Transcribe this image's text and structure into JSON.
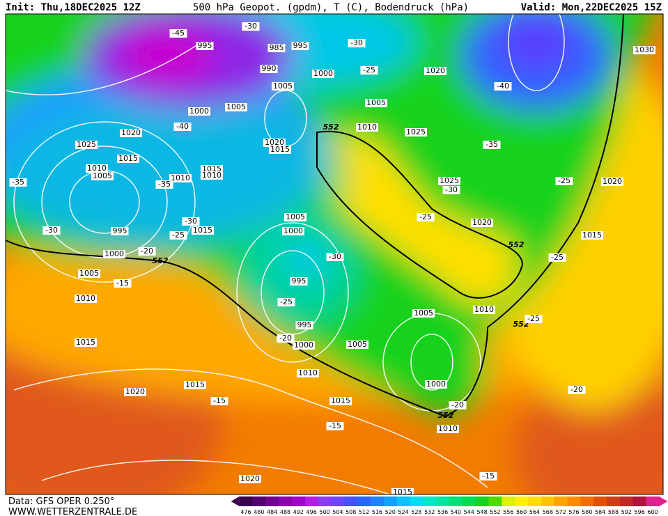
{
  "header": {
    "init": "Init: Thu,18DEC2025 12Z",
    "title": "500 hPa Geopot. (gpdm), T (C), Bodendruck (hPa)",
    "valid": "Valid: Mon,22DEC2025 15Z"
  },
  "map": {
    "labels": [
      -45,
      -30,
      995,
      985,
      995,
      -30,
      990,
      1000,
      -25,
      1020,
      1030,
      1005,
      -40,
      1005,
      1005,
      1000,
      552,
      1010,
      1025,
      -40,
      1020,
      1020,
      1015,
      -35,
      1025,
      1015,
      1010,
      1005,
      1015,
      1010,
      1010,
      1025,
      -30,
      -25,
      1020,
      -35,
      -35,
      -30,
      -25,
      1005,
      1020,
      995,
      -30,
      1015,
      -25,
      1000,
      1015,
      552,
      1000,
      -20,
      552,
      -30,
      -25,
      1005,
      -15,
      995,
      -25,
      1010,
      1010,
      1005,
      552,
      -25,
      995,
      -20,
      1000,
      1005,
      1015,
      1010,
      1000,
      1015,
      1020,
      -15,
      1015,
      -20,
      -20,
      552,
      1010,
      -15,
      -15,
      1020,
      1015
    ]
  },
  "footer": {
    "data": "Data: GFS OPER 0.250°",
    "site": "WWW.WETTERZENTRALE.DE"
  },
  "colorbar": {
    "labels": [
      476,
      480,
      484,
      488,
      492,
      496,
      500,
      504,
      508,
      512,
      516,
      520,
      524,
      528,
      532,
      536,
      540,
      544,
      548,
      552,
      556,
      560,
      564,
      568,
      572,
      576,
      580,
      584,
      588,
      592,
      596,
      600
    ],
    "colors": [
      "#3c0050",
      "#550070",
      "#700090",
      "#8a00ab",
      "#a000c8",
      "#b41ee0",
      "#8c3cf0",
      "#6e46ff",
      "#4650ff",
      "#2a64ff",
      "#1e82ff",
      "#14a0ff",
      "#0ac3ff",
      "#00dcf0",
      "#00e6c8",
      "#00e6a0",
      "#00e178",
      "#00dc50",
      "#14d21e",
      "#50dc00",
      "#dcf000",
      "#fff000",
      "#ffdc00",
      "#ffc300",
      "#ffa500",
      "#ff8c00",
      "#f06e00",
      "#e05000",
      "#d03c14",
      "#c02828",
      "#b0143c",
      "#e0208c"
    ]
  }
}
